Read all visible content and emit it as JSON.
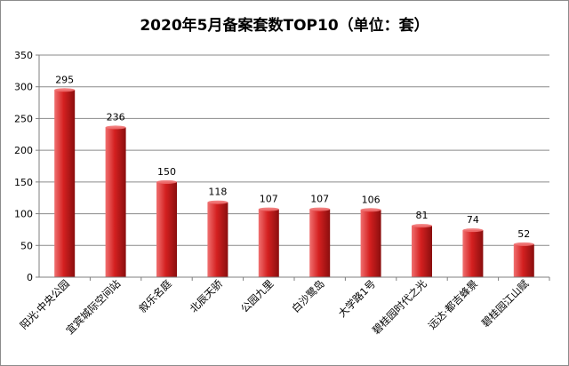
{
  "chart_data": {
    "type": "bar",
    "title": "2020年5月备案套数TOP10（单位：套）",
    "categories": [
      "阳光·中央公园",
      "宜宾城际空间站",
      "叙乐名庭",
      "北辰天骄",
      "公园九里",
      "白沙鹭岛",
      "大学路1号",
      "碧桂园时代之光",
      "远达·都吉蜂景",
      "碧桂园江山赋"
    ],
    "values": [
      295,
      236,
      150,
      118,
      107,
      107,
      106,
      81,
      74,
      52
    ],
    "ylim": [
      0,
      350
    ],
    "yticks": [
      0,
      50,
      100,
      150,
      200,
      250,
      300,
      350
    ],
    "xlabel": "",
    "ylabel": "",
    "grid": true,
    "legend": "none",
    "colors": {
      "bar_light": "#f07070",
      "bar_mid": "#d42020",
      "bar_dark": "#8a0e0e",
      "grid": "#8a8a8a",
      "axis": "#7f7f7f"
    }
  }
}
